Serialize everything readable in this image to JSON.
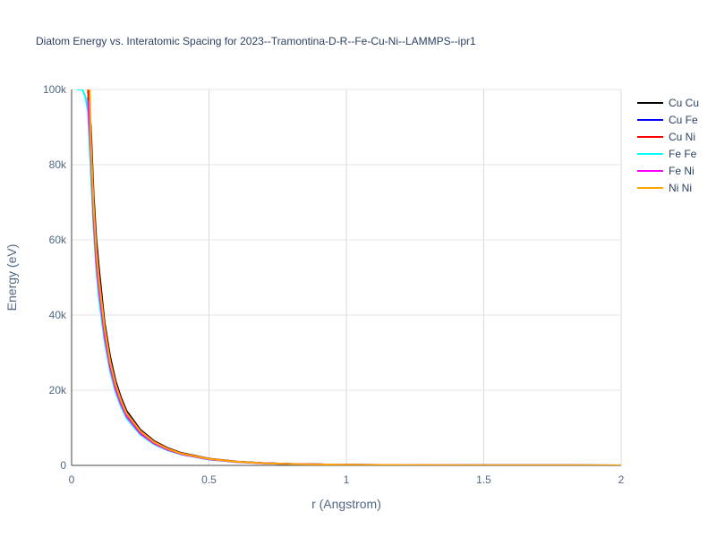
{
  "chart_data": {
    "type": "line",
    "title": "Diatom Energy vs. Interatomic Spacing for 2023--Tramontina-D-R--Fe-Cu-Ni--LAMMPS--ipr1",
    "xlabel": "r (Angstrom)",
    "ylabel": "Energy (eV)",
    "xlim": [
      0,
      2
    ],
    "ylim": [
      0,
      100000
    ],
    "x_ticks": [
      0,
      0.5,
      1,
      1.5,
      2
    ],
    "x_tick_labels": [
      "0",
      "0.5",
      "1",
      "1.5",
      "2"
    ],
    "y_ticks": [
      0,
      20000,
      40000,
      60000,
      80000,
      100000
    ],
    "y_tick_labels": [
      "0",
      "20k",
      "40k",
      "60k",
      "80k",
      "100k"
    ],
    "grid": true,
    "legend_position": "top-right",
    "series": [
      {
        "name": "Cu Cu",
        "color": "#000000",
        "x": [
          0.06,
          0.07,
          0.08,
          0.09,
          0.1,
          0.12,
          0.14,
          0.16,
          0.18,
          0.2,
          0.25,
          0.3,
          0.35,
          0.4,
          0.5,
          0.6,
          0.7,
          0.8,
          1.0,
          1.2,
          1.5,
          2.0
        ],
        "y": [
          100000,
          90000,
          72000,
          60000,
          52000,
          38000,
          29000,
          22500,
          18000,
          14500,
          9500,
          6500,
          4600,
          3300,
          1800,
          1000,
          600,
          380,
          170,
          90,
          40,
          10
        ]
      },
      {
        "name": "Cu Fe",
        "color": "#0000ff",
        "x": [
          0.06,
          0.07,
          0.08,
          0.09,
          0.1,
          0.12,
          0.14,
          0.16,
          0.18,
          0.2,
          0.25,
          0.3,
          0.35,
          0.4,
          0.5,
          0.6,
          0.7,
          0.8,
          1.0,
          1.2,
          1.5,
          2.0
        ],
        "y": [
          98000,
          84000,
          67000,
          55000,
          47000,
          35000,
          26500,
          20500,
          16500,
          13200,
          8600,
          5900,
          4200,
          3000,
          1650,
          950,
          560,
          350,
          160,
          85,
          38,
          10
        ]
      },
      {
        "name": "Cu Ni",
        "color": "#ff0000",
        "x": [
          0.06,
          0.07,
          0.08,
          0.09,
          0.1,
          0.12,
          0.14,
          0.16,
          0.18,
          0.2,
          0.25,
          0.3,
          0.35,
          0.4,
          0.5,
          0.6,
          0.7,
          0.8,
          1.0,
          1.2,
          1.5,
          2.0
        ],
        "y": [
          100000,
          88000,
          70000,
          58000,
          50000,
          37000,
          28000,
          21800,
          17400,
          14000,
          9200,
          6300,
          4450,
          3200,
          1750,
          980,
          580,
          370,
          165,
          88,
          39,
          10
        ]
      },
      {
        "name": "Fe Fe",
        "color": "#00ffff",
        "x": [
          0.02,
          0.04,
          0.05,
          0.06,
          0.07,
          0.08,
          0.09,
          0.1,
          0.12,
          0.14,
          0.16,
          0.18,
          0.2,
          0.25,
          0.3,
          0.35,
          0.4,
          0.5,
          0.6,
          0.7,
          0.8,
          1.0,
          1.2,
          1.5,
          2.0
        ],
        "y": [
          100000,
          100000,
          98000,
          94000,
          78000,
          63000,
          52000,
          44000,
          33000,
          25000,
          19500,
          15600,
          12500,
          8200,
          5600,
          4000,
          2900,
          1550,
          900,
          540,
          340,
          155,
          82,
          36,
          9
        ]
      },
      {
        "name": "Fe Ni",
        "color": "#ff00ff",
        "x": [
          0.06,
          0.07,
          0.08,
          0.09,
          0.1,
          0.12,
          0.14,
          0.16,
          0.18,
          0.2,
          0.25,
          0.3,
          0.35,
          0.4,
          0.5,
          0.6,
          0.7,
          0.8,
          1.0,
          1.2,
          1.5,
          2.0
        ],
        "y": [
          97000,
          83000,
          66000,
          54000,
          46500,
          34500,
          26200,
          20300,
          16300,
          13100,
          8500,
          5850,
          4150,
          2980,
          1620,
          930,
          550,
          345,
          158,
          84,
          37,
          10
        ]
      },
      {
        "name": "Ni Ni",
        "color": "#ffa500",
        "x": [
          0.06,
          0.063,
          0.066,
          0.07,
          0.08,
          0.09,
          0.1,
          0.12,
          0.14,
          0.16,
          0.18,
          0.2,
          0.25,
          0.3,
          0.35,
          0.4,
          0.5,
          0.6,
          0.7,
          0.8,
          1.0,
          1.2,
          1.5,
          2.0
        ],
        "y": [
          100000,
          100000,
          100000,
          86000,
          69000,
          57000,
          49000,
          36500,
          27600,
          21500,
          17200,
          13800,
          9100,
          6200,
          4400,
          3150,
          1720,
          970,
          575,
          365,
          162,
          87,
          39,
          10
        ]
      }
    ]
  }
}
